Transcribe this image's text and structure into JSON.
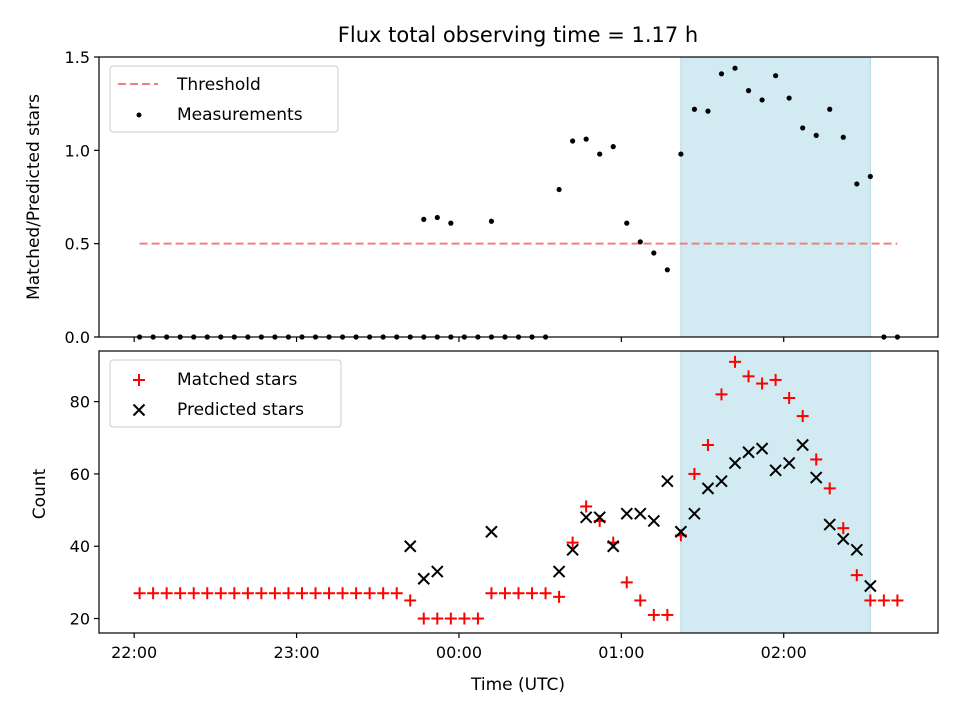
{
  "chart_data": [
    {
      "type": "scatter",
      "title": "Flux total observing time = 1.17 h",
      "xlabel": "",
      "ylabel": "Matched/Predicted stars",
      "xlim": [
        "21:47",
        "02:57"
      ],
      "ylim": [
        0,
        1.5
      ],
      "yticks": [
        "0.0",
        "0.5",
        "1.0",
        "1.5"
      ],
      "legend": "top-left",
      "shaded_interval": [
        "01:22",
        "02:32"
      ],
      "shade_color": "#add8e6",
      "threshold": {
        "name": "Threshold",
        "value": 0.5,
        "x": [
          "22:02",
          "02:42"
        ],
        "color": "#f08080",
        "style": "dashed"
      },
      "series": [
        {
          "name": "Measurements",
          "color": "#000000",
          "marker": "dot",
          "points": [
            [
              "22:02",
              0
            ],
            [
              "22:07",
              0
            ],
            [
              "22:12",
              0
            ],
            [
              "22:17",
              0
            ],
            [
              "22:22",
              0
            ],
            [
              "22:27",
              0
            ],
            [
              "22:32",
              0
            ],
            [
              "22:37",
              0
            ],
            [
              "22:42",
              0
            ],
            [
              "22:47",
              0
            ],
            [
              "22:52",
              0
            ],
            [
              "22:57",
              0
            ],
            [
              "23:02",
              0
            ],
            [
              "23:07",
              0
            ],
            [
              "23:12",
              0
            ],
            [
              "23:17",
              0
            ],
            [
              "23:22",
              0
            ],
            [
              "23:27",
              0
            ],
            [
              "23:32",
              0
            ],
            [
              "23:37",
              0
            ],
            [
              "23:42",
              0
            ],
            [
              "23:47",
              0
            ],
            [
              "23:52",
              0
            ],
            [
              "23:57",
              0
            ],
            [
              "00:02",
              0
            ],
            [
              "00:07",
              0
            ],
            [
              "00:12",
              0
            ],
            [
              "00:17",
              0
            ],
            [
              "00:22",
              0
            ],
            [
              "00:27",
              0
            ],
            [
              "00:32",
              0
            ],
            [
              "23:47",
              0.63
            ],
            [
              "23:52",
              0.64
            ],
            [
              "23:57",
              0.61
            ],
            [
              "00:12",
              0.62
            ],
            [
              "00:37",
              0.79
            ],
            [
              "00:42",
              1.05
            ],
            [
              "00:47",
              1.06
            ],
            [
              "00:52",
              0.98
            ],
            [
              "00:57",
              1.02
            ],
            [
              "01:02",
              0.61
            ],
            [
              "01:07",
              0.51
            ],
            [
              "01:12",
              0.45
            ],
            [
              "01:17",
              0.36
            ],
            [
              "01:22",
              0.98
            ],
            [
              "01:27",
              1.22
            ],
            [
              "01:32",
              1.21
            ],
            [
              "01:37",
              1.41
            ],
            [
              "01:42",
              1.44
            ],
            [
              "01:47",
              1.32
            ],
            [
              "01:52",
              1.27
            ],
            [
              "01:57",
              1.4
            ],
            [
              "02:02",
              1.28
            ],
            [
              "02:07",
              1.12
            ],
            [
              "02:12",
              1.08
            ],
            [
              "02:17",
              1.22
            ],
            [
              "02:22",
              1.07
            ],
            [
              "02:27",
              0.82
            ],
            [
              "02:32",
              0.86
            ],
            [
              "02:37",
              0
            ],
            [
              "02:42",
              0
            ]
          ]
        }
      ]
    },
    {
      "type": "scatter",
      "title": "",
      "xlabel": "Time (UTC)",
      "ylabel": "Count",
      "xlim": [
        "21:47",
        "02:57"
      ],
      "ylim": [
        16,
        94
      ],
      "xticks": [
        "22:00",
        "23:00",
        "00:00",
        "01:00",
        "02:00"
      ],
      "yticks": [
        "20",
        "40",
        "60",
        "80"
      ],
      "legend": "top-left",
      "shaded_interval": [
        "01:22",
        "02:32"
      ],
      "shade_color": "#add8e6",
      "series": [
        {
          "name": "Matched stars",
          "color": "#ff0000",
          "marker": "plus",
          "points": [
            [
              "22:02",
              27
            ],
            [
              "22:07",
              27
            ],
            [
              "22:12",
              27
            ],
            [
              "22:17",
              27
            ],
            [
              "22:22",
              27
            ],
            [
              "22:27",
              27
            ],
            [
              "22:32",
              27
            ],
            [
              "22:37",
              27
            ],
            [
              "22:42",
              27
            ],
            [
              "22:47",
              27
            ],
            [
              "22:52",
              27
            ],
            [
              "22:57",
              27
            ],
            [
              "23:02",
              27
            ],
            [
              "23:07",
              27
            ],
            [
              "23:12",
              27
            ],
            [
              "23:17",
              27
            ],
            [
              "23:22",
              27
            ],
            [
              "23:27",
              27
            ],
            [
              "23:32",
              27
            ],
            [
              "23:37",
              27
            ],
            [
              "23:42",
              25
            ],
            [
              "23:47",
              20
            ],
            [
              "23:52",
              20
            ],
            [
              "23:57",
              20
            ],
            [
              "00:02",
              20
            ],
            [
              "00:07",
              20
            ],
            [
              "00:12",
              27
            ],
            [
              "00:17",
              27
            ],
            [
              "00:22",
              27
            ],
            [
              "00:27",
              27
            ],
            [
              "00:32",
              27
            ],
            [
              "00:37",
              26
            ],
            [
              "00:42",
              41
            ],
            [
              "00:47",
              51
            ],
            [
              "00:52",
              47
            ],
            [
              "00:57",
              41
            ],
            [
              "01:02",
              30
            ],
            [
              "01:07",
              25
            ],
            [
              "01:12",
              21
            ],
            [
              "01:17",
              21
            ],
            [
              "01:22",
              43
            ],
            [
              "01:27",
              60
            ],
            [
              "01:32",
              68
            ],
            [
              "01:37",
              82
            ],
            [
              "01:42",
              91
            ],
            [
              "01:47",
              87
            ],
            [
              "01:52",
              85
            ],
            [
              "01:57",
              86
            ],
            [
              "02:02",
              81
            ],
            [
              "02:07",
              76
            ],
            [
              "02:12",
              64
            ],
            [
              "02:17",
              56
            ],
            [
              "02:22",
              45
            ],
            [
              "02:27",
              32
            ],
            [
              "02:32",
              25
            ],
            [
              "02:37",
              25
            ],
            [
              "02:42",
              25
            ]
          ]
        },
        {
          "name": "Predicted stars",
          "color": "#000000",
          "marker": "x",
          "points": [
            [
              "23:42",
              40
            ],
            [
              "23:47",
              31
            ],
            [
              "23:52",
              33
            ],
            [
              "00:12",
              44
            ],
            [
              "00:37",
              33
            ],
            [
              "00:42",
              39
            ],
            [
              "00:47",
              48
            ],
            [
              "00:52",
              48
            ],
            [
              "00:57",
              40
            ],
            [
              "01:02",
              49
            ],
            [
              "01:07",
              49
            ],
            [
              "01:12",
              47
            ],
            [
              "01:17",
              58
            ],
            [
              "01:22",
              44
            ],
            [
              "01:27",
              49
            ],
            [
              "01:32",
              56
            ],
            [
              "01:37",
              58
            ],
            [
              "01:42",
              63
            ],
            [
              "01:47",
              66
            ],
            [
              "01:52",
              67
            ],
            [
              "01:57",
              61
            ],
            [
              "02:02",
              63
            ],
            [
              "02:07",
              68
            ],
            [
              "02:12",
              59
            ],
            [
              "02:17",
              46
            ],
            [
              "02:22",
              42
            ],
            [
              "02:27",
              39
            ],
            [
              "02:32",
              29
            ]
          ]
        }
      ]
    }
  ]
}
